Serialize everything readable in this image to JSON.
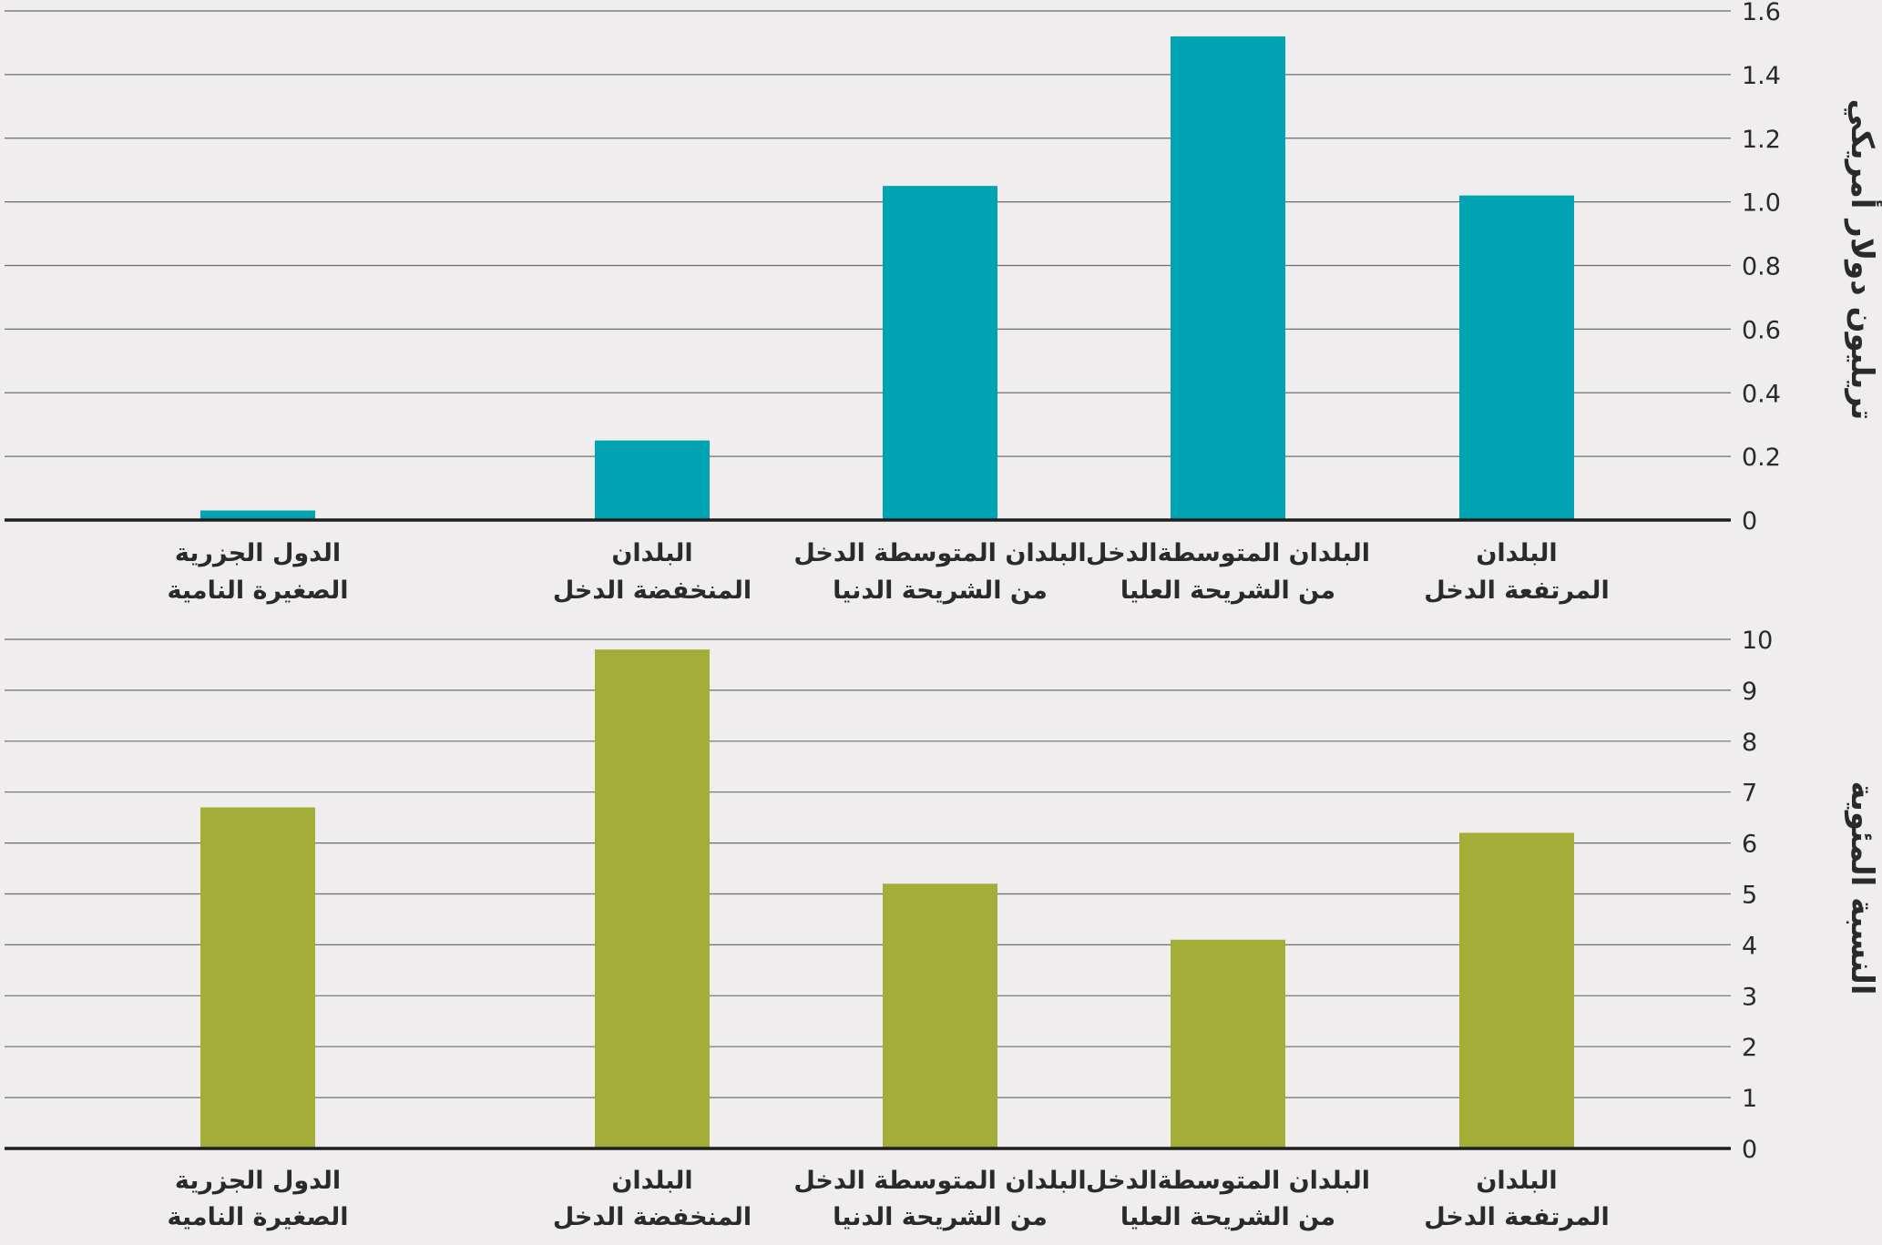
{
  "chart_data": [
    {
      "type": "bar",
      "categories": [
        [
          "الدول الجزرية",
          "الصغيرة النامية"
        ],
        [
          "البلدان",
          "المنخفضة الدخل"
        ],
        [
          "البلدان المتوسطة الدخل",
          "من الشريحة الدنيا"
        ],
        [
          "البلدان المتوسطةالدخل",
          "من الشريحة العليا"
        ],
        [
          "البلدان",
          "المرتفعة الدخل"
        ]
      ],
      "values": [
        0.03,
        0.25,
        1.05,
        1.52,
        1.02
      ],
      "ylabel": "تريليون دولار أمريكي",
      "ylim": [
        0,
        1.6
      ],
      "yticks": [
        "0",
        "0.2",
        "0.4",
        "0.6",
        "0.8",
        "1.0",
        "1.2",
        "1.4",
        "1.6"
      ],
      "color": "#00a3b1",
      "grid": true,
      "legend": "none"
    },
    {
      "type": "bar",
      "categories": [
        [
          "الدول الجزرية",
          "الصغيرة النامية"
        ],
        [
          "البلدان",
          "المنخفضة الدخل"
        ],
        [
          "البلدان المتوسطة الدخل",
          "من الشريحة الدنيا"
        ],
        [
          "البلدان المتوسطةالدخل",
          "من الشريحة العليا"
        ],
        [
          "البلدان",
          "المرتفعة الدخل"
        ]
      ],
      "values": [
        6.7,
        9.8,
        5.2,
        4.1,
        6.2
      ],
      "ylabel": "النسبة المئوية",
      "ylim": [
        0,
        10
      ],
      "yticks": [
        "0",
        "1",
        "2",
        "3",
        "4",
        "5",
        "6",
        "7",
        "8",
        "9",
        "10"
      ],
      "color": "#a3ae38",
      "grid": true,
      "legend": "none"
    }
  ]
}
